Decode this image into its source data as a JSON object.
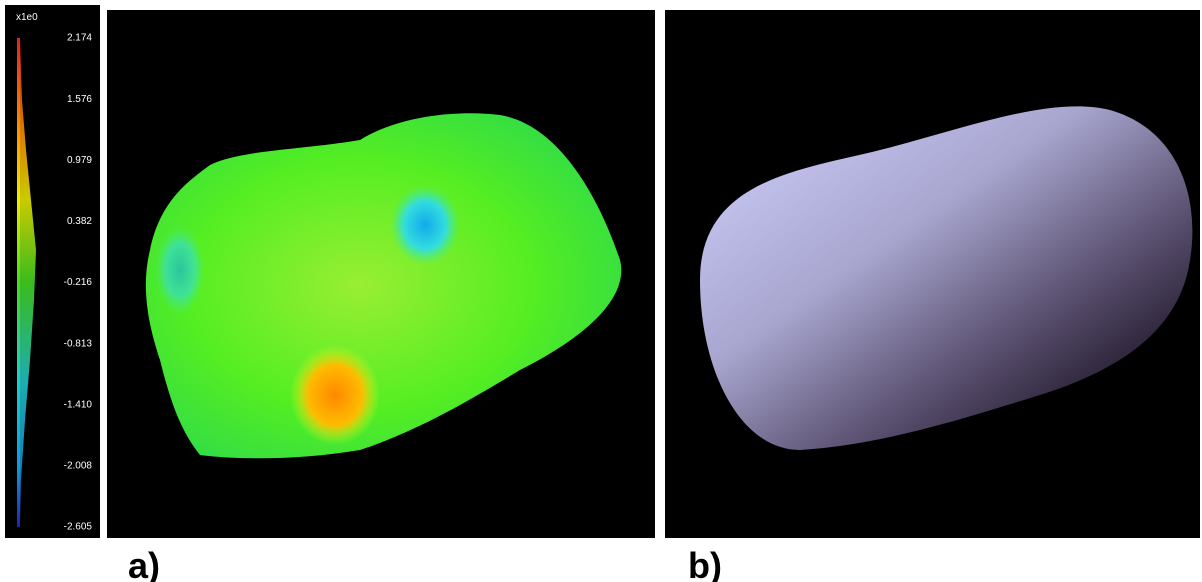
{
  "colorbar": {
    "scale": "x1e0",
    "ticks": [
      "2.174",
      "1.576",
      "0.979",
      "0.382",
      "-0.216",
      "-0.813",
      "-1.410",
      "-2.008",
      "-2.605"
    ]
  },
  "panels": [
    {
      "label": "a)"
    },
    {
      "label": "b)"
    }
  ]
}
